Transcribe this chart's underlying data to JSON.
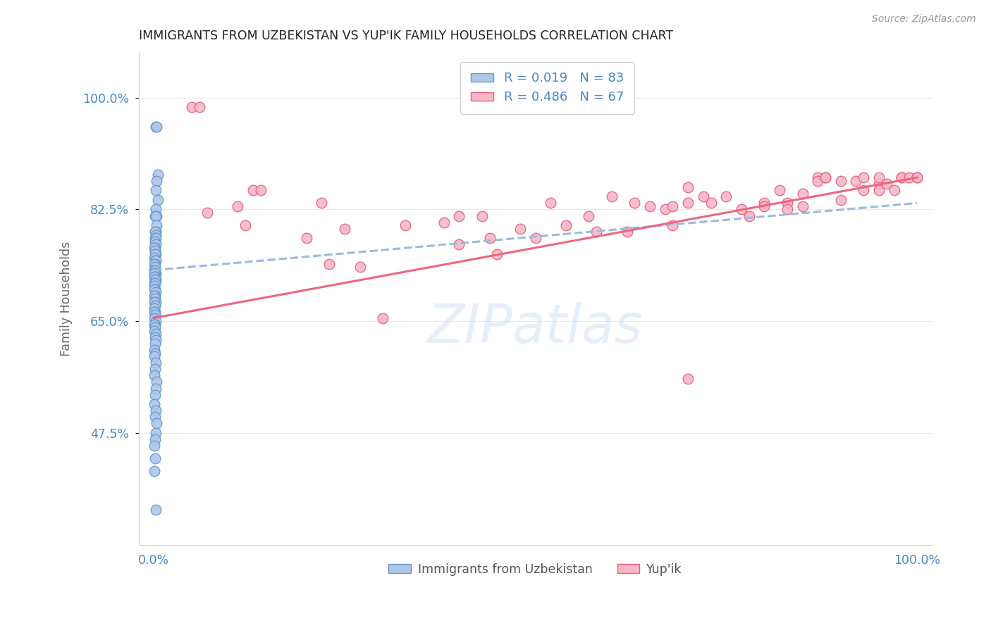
{
  "title": "IMMIGRANTS FROM UZBEKISTAN VS YUP'IK FAMILY HOUSEHOLDS CORRELATION CHART",
  "source": "Source: ZipAtlas.com",
  "ylabel": "Family Households",
  "ytick_vals": [
    0.475,
    0.65,
    0.825,
    1.0
  ],
  "ytick_labels": [
    "47.5%",
    "65.0%",
    "82.5%",
    "100.0%"
  ],
  "xtick_vals": [
    0.0,
    1.0
  ],
  "xtick_labels": [
    "0.0%",
    "100.0%"
  ],
  "watermark": "ZIPatlas",
  "legend_r1": "R = 0.019",
  "legend_n1": "N = 83",
  "legend_r2": "R = 0.486",
  "legend_n2": "N = 67",
  "series1_color": "#aec6e8",
  "series1_edge": "#6699cc",
  "series2_color": "#f5b8c8",
  "series2_edge": "#e8607a",
  "trend1_color": "#99bbdd",
  "trend2_color": "#ee6680",
  "background_color": "#ffffff",
  "grid_color": "#e8e8ee",
  "title_color": "#222222",
  "axis_label_color": "#4488cc",
  "ylabel_color": "#666666",
  "source_color": "#999999",
  "xlim": [
    -0.02,
    1.02
  ],
  "ylim": [
    0.3,
    1.07
  ],
  "series1_x": [
    0.003,
    0.004,
    0.005,
    0.004,
    0.003,
    0.005,
    0.003,
    0.004,
    0.002,
    0.003,
    0.004,
    0.003,
    0.002,
    0.003,
    0.002,
    0.003,
    0.002,
    0.003,
    0.002,
    0.001,
    0.002,
    0.003,
    0.002,
    0.001,
    0.002,
    0.003,
    0.002,
    0.001,
    0.002,
    0.001,
    0.002,
    0.003,
    0.002,
    0.001,
    0.002,
    0.001,
    0.003,
    0.002,
    0.001,
    0.002,
    0.001,
    0.002,
    0.001,
    0.003,
    0.002,
    0.001,
    0.002,
    0.003,
    0.001,
    0.002,
    0.001,
    0.002,
    0.001,
    0.002,
    0.001,
    0.003,
    0.002,
    0.001,
    0.002,
    0.001,
    0.003,
    0.002,
    0.003,
    0.002,
    0.001,
    0.002,
    0.001,
    0.003,
    0.002,
    0.001,
    0.004,
    0.003,
    0.002,
    0.001,
    0.003,
    0.002,
    0.004,
    0.003,
    0.002,
    0.001,
    0.002,
    0.001,
    0.003
  ],
  "series1_y": [
    0.955,
    0.955,
    0.88,
    0.87,
    0.855,
    0.84,
    0.825,
    0.815,
    0.815,
    0.815,
    0.8,
    0.79,
    0.79,
    0.785,
    0.78,
    0.78,
    0.775,
    0.77,
    0.765,
    0.765,
    0.76,
    0.755,
    0.755,
    0.75,
    0.745,
    0.745,
    0.74,
    0.74,
    0.735,
    0.73,
    0.73,
    0.725,
    0.725,
    0.725,
    0.72,
    0.72,
    0.715,
    0.715,
    0.71,
    0.71,
    0.705,
    0.7,
    0.7,
    0.695,
    0.69,
    0.69,
    0.685,
    0.68,
    0.68,
    0.675,
    0.67,
    0.665,
    0.665,
    0.66,
    0.655,
    0.65,
    0.645,
    0.645,
    0.64,
    0.635,
    0.63,
    0.625,
    0.62,
    0.615,
    0.605,
    0.6,
    0.595,
    0.585,
    0.575,
    0.565,
    0.555,
    0.545,
    0.535,
    0.52,
    0.51,
    0.5,
    0.49,
    0.475,
    0.465,
    0.455,
    0.435,
    0.415,
    0.355
  ],
  "series2_x": [
    0.05,
    0.06,
    0.07,
    0.11,
    0.12,
    0.13,
    0.14,
    0.2,
    0.22,
    0.23,
    0.25,
    0.27,
    0.3,
    0.33,
    0.38,
    0.4,
    0.4,
    0.43,
    0.44,
    0.45,
    0.48,
    0.5,
    0.52,
    0.54,
    0.57,
    0.58,
    0.6,
    0.62,
    0.63,
    0.65,
    0.67,
    0.68,
    0.68,
    0.7,
    0.7,
    0.72,
    0.73,
    0.75,
    0.77,
    0.78,
    0.8,
    0.8,
    0.82,
    0.83,
    0.83,
    0.85,
    0.85,
    0.87,
    0.87,
    0.88,
    0.88,
    0.9,
    0.9,
    0.92,
    0.93,
    0.93,
    0.95,
    0.95,
    0.95,
    0.96,
    0.97,
    0.98,
    0.98,
    0.99,
    1.0,
    1.0,
    0.7
  ],
  "series2_y": [
    0.985,
    0.985,
    0.82,
    0.83,
    0.8,
    0.855,
    0.855,
    0.78,
    0.835,
    0.74,
    0.795,
    0.735,
    0.655,
    0.8,
    0.805,
    0.77,
    0.815,
    0.815,
    0.78,
    0.755,
    0.795,
    0.78,
    0.835,
    0.8,
    0.815,
    0.79,
    0.845,
    0.79,
    0.835,
    0.83,
    0.825,
    0.83,
    0.8,
    0.86,
    0.835,
    0.845,
    0.835,
    0.845,
    0.825,
    0.815,
    0.835,
    0.83,
    0.855,
    0.835,
    0.825,
    0.83,
    0.85,
    0.875,
    0.87,
    0.875,
    0.875,
    0.87,
    0.84,
    0.87,
    0.855,
    0.875,
    0.865,
    0.855,
    0.875,
    0.865,
    0.855,
    0.875,
    0.875,
    0.875,
    0.875,
    0.875,
    0.56
  ],
  "trend1_x": [
    0.0,
    1.0
  ],
  "trend1_y": [
    0.73,
    0.835
  ],
  "trend2_x": [
    0.0,
    1.0
  ],
  "trend2_y": [
    0.655,
    0.875
  ]
}
